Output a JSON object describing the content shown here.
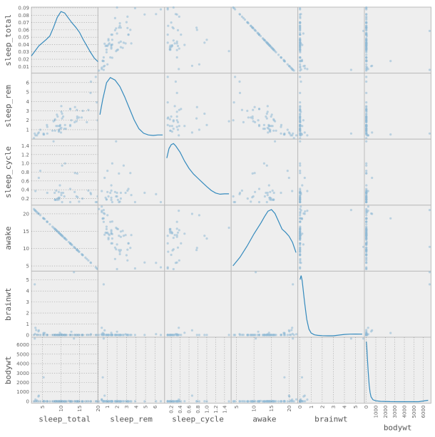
{
  "chart_data": {
    "type": "scatter-matrix",
    "variables": [
      "sleep_total",
      "sleep_rem",
      "sleep_cycle",
      "awake",
      "brainwt",
      "bodywt"
    ],
    "diagonal": "kde",
    "colors": {
      "points": "#8fb9d6",
      "kde": "#348abd",
      "panel": "#eeeeee",
      "border": "#bcbcbc"
    },
    "ranges": {
      "sleep_total": [
        2,
        20
      ],
      "sleep_rem": [
        0,
        7
      ],
      "sleep_cycle": [
        0.05,
        1.55
      ],
      "awake": [
        3.5,
        22.5
      ],
      "brainwt": [
        -0.2,
        5.8
      ],
      "bodywt": [
        -200,
        6800
      ]
    },
    "ticks": {
      "sleep_total": [
        5,
        10,
        15,
        20
      ],
      "sleep_rem": [
        1,
        2,
        3,
        4,
        5,
        6
      ],
      "sleep_cycle": [
        0.2,
        0.4,
        0.6,
        0.8,
        1.0,
        1.2,
        1.4
      ],
      "awake": [
        5,
        10,
        15,
        20
      ],
      "brainwt": [
        0,
        1,
        2,
        3,
        4,
        5
      ],
      "bodywt": [
        0,
        1000,
        2000,
        3000,
        4000,
        5000,
        6000
      ]
    },
    "tick_labels": {
      "sleep_total": [
        "5",
        "10",
        "15",
        "20"
      ],
      "sleep_rem": [
        "1",
        "2",
        "3",
        "4",
        "5",
        "6"
      ],
      "sleep_cycle": [
        "0.2",
        "0.4",
        "0.6",
        "0.8",
        "1.0",
        "1.2",
        "1.4"
      ],
      "awake": [
        "5",
        "10",
        "15",
        "20"
      ],
      "brainwt": [
        "0",
        "1",
        "2",
        "3",
        "4",
        "5"
      ],
      "bodywt": [
        "0",
        "1000",
        "2000",
        "3000",
        "4000",
        "5000",
        "6000"
      ]
    },
    "diag_y_ticks": [
      "0.09",
      "0.08",
      "0.07",
      "0.06",
      "0.05",
      "0.04",
      "0.03",
      "0.02",
      "0.01"
    ],
    "kde_curves": {
      "sleep_total": [
        [
          2,
          0.022
        ],
        [
          4,
          0.036
        ],
        [
          6,
          0.045
        ],
        [
          7,
          0.05
        ],
        [
          8,
          0.062
        ],
        [
          9,
          0.076
        ],
        [
          10,
          0.084
        ],
        [
          11,
          0.082
        ],
        [
          12,
          0.075
        ],
        [
          13,
          0.068
        ],
        [
          14,
          0.062
        ],
        [
          15,
          0.055
        ],
        [
          16,
          0.045
        ],
        [
          17,
          0.036
        ],
        [
          18,
          0.027
        ],
        [
          19,
          0.019
        ],
        [
          20,
          0.014
        ]
      ],
      "sleep_rem": [
        [
          0.2,
          0.18
        ],
        [
          0.5,
          0.3
        ],
        [
          0.9,
          0.43
        ],
        [
          1.3,
          0.47
        ],
        [
          1.8,
          0.45
        ],
        [
          2.3,
          0.4
        ],
        [
          2.8,
          0.32
        ],
        [
          3.3,
          0.23
        ],
        [
          3.8,
          0.14
        ],
        [
          4.3,
          0.07
        ],
        [
          4.8,
          0.035
        ],
        [
          5.3,
          0.022
        ],
        [
          5.8,
          0.018
        ],
        [
          6.3,
          0.022
        ],
        [
          6.8,
          0.022
        ]
      ],
      "sleep_cycle": [
        [
          0.1,
          1.2
        ],
        [
          0.15,
          1.45
        ],
        [
          0.2,
          1.55
        ],
        [
          0.25,
          1.58
        ],
        [
          0.3,
          1.52
        ],
        [
          0.4,
          1.35
        ],
        [
          0.5,
          1.12
        ],
        [
          0.6,
          0.93
        ],
        [
          0.7,
          0.78
        ],
        [
          0.8,
          0.67
        ],
        [
          0.9,
          0.56
        ],
        [
          1.0,
          0.45
        ],
        [
          1.1,
          0.35
        ],
        [
          1.2,
          0.28
        ],
        [
          1.3,
          0.25
        ],
        [
          1.4,
          0.26
        ],
        [
          1.5,
          0.26
        ]
      ],
      "awake": [
        [
          4,
          0.005
        ],
        [
          6,
          0.016
        ],
        [
          8,
          0.03
        ],
        [
          10,
          0.046
        ],
        [
          12,
          0.06
        ],
        [
          13,
          0.068
        ],
        [
          14,
          0.075
        ],
        [
          15,
          0.077
        ],
        [
          16,
          0.072
        ],
        [
          17,
          0.062
        ],
        [
          18,
          0.052
        ],
        [
          19,
          0.048
        ],
        [
          20,
          0.043
        ],
        [
          21,
          0.035
        ],
        [
          22,
          0.022
        ]
      ],
      "brainwt": [
        [
          0,
          4.2
        ],
        [
          0.1,
          4.5
        ],
        [
          0.2,
          4.1
        ],
        [
          0.4,
          2.6
        ],
        [
          0.6,
          1.25
        ],
        [
          0.8,
          0.5
        ],
        [
          1.0,
          0.2
        ],
        [
          1.3,
          0.07
        ],
        [
          1.6,
          0.03
        ],
        [
          2.0,
          0.01
        ],
        [
          2.5,
          0
        ],
        [
          3.0,
          0
        ],
        [
          4.0,
          0.1
        ],
        [
          4.5,
          0.12
        ],
        [
          5.0,
          0.13
        ],
        [
          5.6,
          0.12
        ]
      ],
      "bodywt": [
        [
          0,
          0.0072
        ],
        [
          50,
          0.0066
        ],
        [
          100,
          0.0055
        ],
        [
          200,
          0.0036
        ],
        [
          300,
          0.002
        ],
        [
          400,
          0.0011
        ],
        [
          500,
          0.0006
        ],
        [
          700,
          0.00024
        ],
        [
          1000,
          0.00012
        ],
        [
          1500,
          5e-05
        ],
        [
          2500,
          2e-05
        ],
        [
          3500,
          1e-05
        ],
        [
          4500,
          8e-06
        ],
        [
          5500,
          1e-05
        ],
        [
          6500,
          0.00018
        ]
      ]
    },
    "sample": {
      "sleep_total": [
        12.1,
        17.0,
        14.4,
        14.9,
        4.0,
        14.4,
        8.7,
        7.0,
        10.1,
        3.0,
        5.3,
        9.4,
        10.0,
        12.5,
        10.3,
        8.3,
        9.1,
        17.4,
        5.3,
        18.0,
        3.9,
        19.7,
        2.9,
        3.1,
        10.1,
        10.9,
        14.9,
        12.5,
        9.8,
        1.9,
        2.7,
        6.2,
        6.3,
        8.0,
        9.5,
        3.3,
        19.4,
        10.1,
        14.2,
        14.3,
        12.8,
        12.5,
        19.9,
        14.6,
        11.0,
        7.7,
        14.5,
        8.4,
        3.8,
        9.7,
        15.8,
        10.4,
        13.5,
        9.4,
        10.3,
        11.0,
        11.5,
        13.7,
        3.5,
        5.6,
        11.1,
        18.1,
        5.4,
        13.0,
        8.7,
        9.6,
        8.4,
        11.3,
        10.6,
        16.6,
        13.8,
        15.9,
        12.8,
        9.1,
        8.6,
        15.8,
        4.4,
        15.6,
        8.9,
        5.2,
        6.3,
        12.5,
        9.8
      ],
      "sleep_rem": [
        null,
        1.8,
        2.4,
        2.3,
        0.7,
        2.2,
        1.4,
        null,
        2.9,
        null,
        0.6,
        0.8,
        0.7,
        1.5,
        2.2,
        2.0,
        1.4,
        3.1,
        0.5,
        4.9,
        null,
        3.9,
        0.6,
        0.4,
        3.5,
        1.1,
        null,
        3.2,
        1.1,
        0.4,
        0.1,
        1.5,
        0.6,
        1.9,
        0.9,
        null,
        6.6,
        1.2,
        1.9,
        3.1,
        null,
        1.4,
        2.0,
        null,
        null,
        0.9,
        null,
        0.9,
        0.6,
        1.4,
        null,
        null,
        null,
        1.0,
        2.7,
        null,
        null,
        1.8,
        0.4,
        null,
        1.5,
        6.1,
        0.5,
        null,
        null,
        1.4,
        2.1,
        1.1,
        2.4,
        null,
        3.4,
        3.0,
        2.0,
        2.4,
        null,
        null,
        1.0,
        2.3,
        2.6,
        null,
        1.3,
        3.2,
        1.5
      ],
      "sleep_cycle": [
        null,
        null,
        null,
        0.13,
        0.67,
        0.77,
        0.38,
        null,
        0.33,
        null,
        null,
        0.22,
        null,
        0.12,
        0.12,
        0.33,
        0.17,
        0.38,
        null,
        0.33,
        null,
        0.12,
        null,
        0.37,
        0.28,
        0.25,
        null,
        0.42,
        null,
        null,
        null,
        null,
        null,
        1.5,
        0.18,
        null,
        0.12,
        null,
        0.25,
        null,
        null,
        null,
        0.25,
        null,
        null,
        null,
        0.23,
        0.18,
        null,
        0.5,
        0.2,
        null,
        null,
        0.35,
        0.95,
        null,
        null,
        0.35,
        null,
        null,
        1.0,
        0.3,
        null,
        null,
        null,
        0.22,
        0.17,
        null,
        0.33,
        null,
        0.78,
        null,
        null,
        0.2,
        0.17,
        null,
        0.83,
        null,
        null,
        null,
        0.33,
        null,
        null
      ],
      "awake": [
        11.9,
        7.0,
        9.6,
        9.1,
        20.0,
        9.6,
        15.3,
        17.0,
        13.9,
        21.0,
        18.7,
        14.6,
        14.0,
        11.5,
        13.7,
        15.7,
        14.9,
        6.6,
        18.7,
        6.0,
        20.1,
        4.3,
        21.1,
        20.9,
        13.9,
        13.1,
        9.1,
        11.5,
        14.2,
        22.1,
        21.4,
        17.8,
        17.7,
        16.0,
        14.5,
        20.7,
        4.6,
        13.9,
        9.8,
        9.7,
        11.2,
        11.5,
        4.1,
        9.4,
        13.0,
        16.3,
        9.5,
        15.6,
        20.2,
        14.3,
        8.2,
        13.6,
        10.5,
        14.6,
        13.7,
        13.0,
        12.5,
        10.3,
        20.5,
        18.5,
        12.9,
        5.9,
        18.6,
        11.0,
        15.3,
        14.4,
        15.6,
        12.7,
        13.4,
        7.4,
        10.2,
        8.1,
        11.2,
        14.9,
        15.4,
        8.2,
        19.6,
        8.4,
        15.1,
        18.8,
        17.7,
        11.5,
        14.2
      ],
      "brainwt": [
        null,
        0.0155,
        null,
        0.00029,
        0.423,
        null,
        null,
        null,
        0.07,
        0.0982,
        0.115,
        0.0055,
        null,
        0.0064,
        0.001,
        0.0066,
        0.0001,
        0.0121,
        0.18,
        0.0014,
        0.325,
        0.0012,
        4.603,
        0.655,
        0.0082,
        0.00028,
        0.0012,
        0.0023,
        0.00021,
        0.0625,
        0.0049,
        0.0114,
        0.0001,
        0.0028,
        null,
        0.45,
        0.0021,
        null,
        0.0005,
        0.0025,
        null,
        0.0048,
        null,
        0.0003,
        0.005,
        0.01,
        null,
        0.0066,
        0.0174,
        0.2,
        0.0019,
        0.003,
        5.712,
        0.0008,
        0.0025,
        1.8e-05,
        0.0001,
        0.0004,
        0.0109,
        0.18,
        0.0011,
        0.081,
        0.004,
        0.0005,
        null,
        0.0004,
        0.0012,
        0.0002,
        0.0057,
        null,
        0.0033,
        0.000254,
        0.302,
        0.0019,
        0.0014,
        0.0043,
        0.0005,
        0.0015,
        0.0009,
        0.0005,
        0.0049,
        null,
        0.0001
      ],
      "bodywt": [
        50,
        0.48,
        1.35,
        0.019,
        600,
        3.85,
        20.49,
        0.045,
        14,
        14.8,
        33.5,
        0.728,
        4.75,
        0.42,
        0.06,
        1,
        0.005,
        3.5,
        2547,
        0.023,
        521,
        0.77,
        6654,
        187,
        0.071,
        0.107,
        3.6,
        0.103,
        0.01,
        207.5,
        0.048,
        1.7,
        0.01,
        0.005,
        2.8,
        3.5,
        0.37,
        0.48,
        0.005,
        0.01,
        0.022,
        0.25,
        0.023,
        0.045,
        0.15,
        0.5,
        0.022,
        0.2,
        0.05,
        10,
        0.1,
        0.39,
        6654,
        0.11,
        2.6,
        0.021,
        0.005,
        0.4,
        86,
        0.92,
        0.1,
        0.4,
        0.3,
        0.2,
        2.1,
        0.03,
        0.9,
        0.1,
        0.28,
        0.3,
        0.75,
        0.03,
        0.6,
        0.23,
        0.05,
        0.003,
        0.2,
        0.12,
        0.35,
        0.32,
        0.55,
        0.1,
        0.1
      ]
    }
  }
}
